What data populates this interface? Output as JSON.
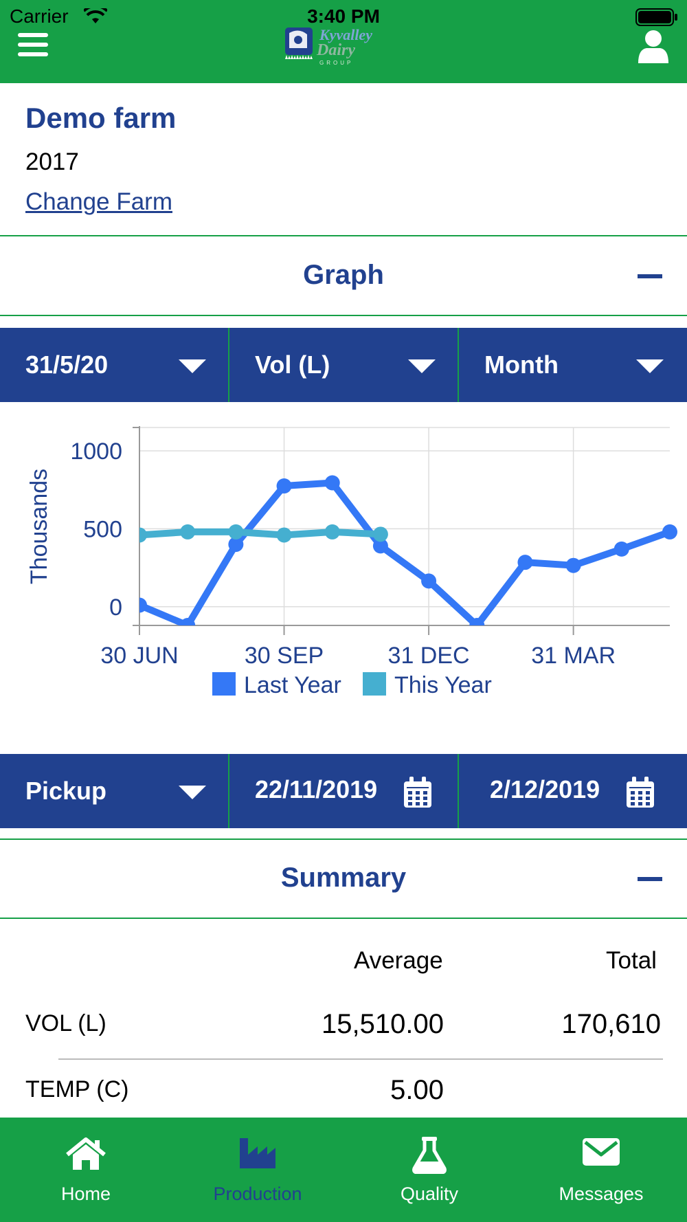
{
  "status_bar": {
    "carrier": "Carrier",
    "time": "3:40 PM"
  },
  "header": {
    "logo_line1": "Kyvalley",
    "logo_line2": "Dairy",
    "logo_line3": "GROUP"
  },
  "farm": {
    "name": "Demo farm",
    "year": "2017",
    "change_link": "Change Farm"
  },
  "graph_section": {
    "title": "Graph"
  },
  "graph_filters": {
    "date": "31/5/20",
    "measure": "Vol (L)",
    "period": "Month"
  },
  "chart_data": {
    "type": "line",
    "ylabel": "Thousands",
    "xlabel": "",
    "yticks": [
      "1000",
      "500",
      "0"
    ],
    "ylim": [
      -120,
      1150
    ],
    "xticks": [
      {
        "label": "30 JUN",
        "x": 0
      },
      {
        "label": "30 SEP",
        "x": 3
      },
      {
        "label": "31 DEC",
        "x": 6
      },
      {
        "label": "31 MAR",
        "x": 9
      }
    ],
    "grid": true,
    "legend_position": "bottom",
    "colors": {
      "last_year": "#3478f6",
      "this_year": "#45afd0"
    },
    "series": [
      {
        "name": "Last Year",
        "x": [
          0,
          1,
          2,
          3,
          4,
          5,
          6,
          7,
          8,
          9,
          10,
          11
        ],
        "values": [
          10,
          -120,
          400,
          775,
          795,
          390,
          165,
          -120,
          285,
          265,
          370,
          480
        ]
      },
      {
        "name": "This Year",
        "x": [
          0,
          1,
          2,
          3,
          4,
          5
        ],
        "values": [
          460,
          480,
          480,
          460,
          480,
          465
        ]
      }
    ]
  },
  "pickup_filters": {
    "type": "Pickup",
    "from_date": "22/11/2019",
    "to_date": "2/12/2019"
  },
  "summary_section": {
    "title": "Summary",
    "col_average": "Average",
    "col_total": "Total",
    "rows": [
      {
        "label": "VOL (L)",
        "average": "15,510.00",
        "total": "170,610"
      },
      {
        "label": "TEMP (C)",
        "average": "5.00",
        "total": ""
      }
    ]
  },
  "tabbar": {
    "items": [
      {
        "label": "Home",
        "icon": "home-icon"
      },
      {
        "label": "Production",
        "icon": "factory-icon"
      },
      {
        "label": "Quality",
        "icon": "flask-icon"
      },
      {
        "label": "Messages",
        "icon": "envelope-icon"
      }
    ],
    "active": "Production"
  }
}
